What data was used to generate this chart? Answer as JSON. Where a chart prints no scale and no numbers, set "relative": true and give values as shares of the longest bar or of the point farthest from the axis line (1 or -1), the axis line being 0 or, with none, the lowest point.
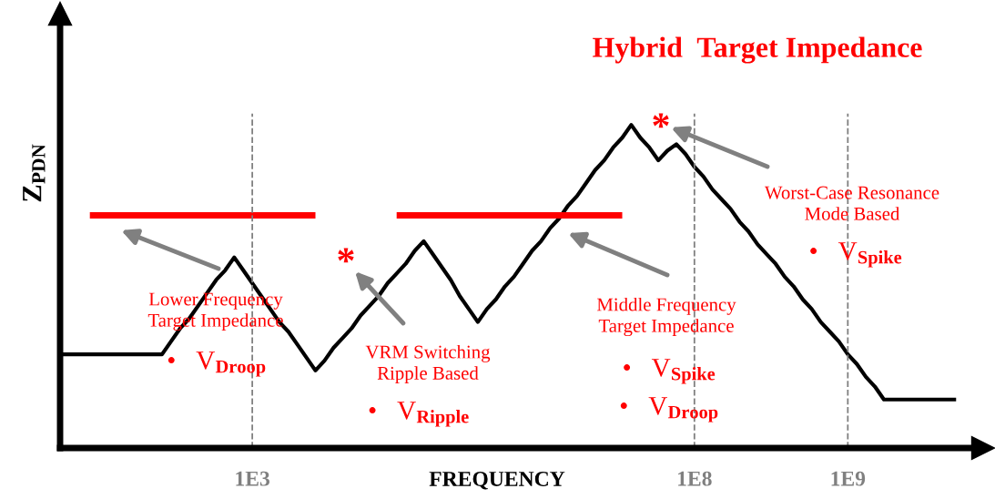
{
  "chart_data": {
    "type": "line",
    "title": "Hybrid  Target Impedance",
    "xlabel": "FREQUENCY",
    "ylabel": "Z$_{PDN}$",
    "relative": true,
    "categories": [
      null,
      null,
      null,
      null,
      null,
      null,
      null,
      null,
      null,
      null,
      null,
      null,
      null,
      null,
      null,
      null,
      null,
      null,
      null,
      null,
      null,
      "1E3",
      null,
      null,
      null,
      null,
      null,
      null,
      null,
      null,
      null,
      null,
      null,
      null,
      null,
      null,
      null,
      null,
      null,
      null,
      null,
      null,
      null,
      null,
      null,
      null,
      null,
      null,
      null,
      null,
      null,
      null,
      null,
      null,
      null,
      null,
      null,
      null,
      null,
      null,
      null,
      null,
      null,
      null,
      null,
      null,
      null,
      null,
      null,
      null,
      "1E8",
      null,
      null,
      null,
      null,
      null,
      null,
      null,
      null,
      null,
      null,
      null,
      null,
      null,
      null,
      null,
      null,
      "1E9",
      null,
      null,
      null,
      null,
      null,
      null,
      null,
      null,
      null,
      null,
      null,
      null,
      null
    ],
    "grid": false,
    "marker": "none",
    "line_style": "solid",
    "series": [
      {
        "color": "#000000",
        "values": [
          0.29,
          0.29,
          0.29,
          0.29,
          0.29,
          0.29,
          0.29,
          0.29,
          0.29,
          0.29,
          0.29,
          0.29,
          0.33,
          0.37,
          0.4,
          0.44,
          0.48,
          0.52,
          0.55,
          0.59,
          0.55,
          0.51,
          0.47,
          0.43,
          0.39,
          0.36,
          0.32,
          0.28,
          0.24,
          0.27,
          0.31,
          0.34,
          0.37,
          0.41,
          0.44,
          0.47,
          0.51,
          0.54,
          0.57,
          0.61,
          0.64,
          0.6,
          0.56,
          0.52,
          0.47,
          0.43,
          0.39,
          0.43,
          0.46,
          0.5,
          0.53,
          0.57,
          0.61,
          0.64,
          0.68,
          0.71,
          0.75,
          0.78,
          0.82,
          0.86,
          0.89,
          0.93,
          0.96,
          1.0,
          0.96,
          0.93,
          0.89,
          0.92,
          0.94,
          0.91,
          0.87,
          0.84,
          0.8,
          0.77,
          0.74,
          0.7,
          0.67,
          0.63,
          0.6,
          0.57,
          0.53,
          0.5,
          0.46,
          0.43,
          0.39,
          0.36,
          0.33,
          0.29,
          0.26,
          0.22,
          0.19,
          0.15,
          0.15,
          0.15,
          0.15,
          0.15,
          0.15,
          0.15,
          0.15,
          0.15,
          null
        ]
      },
      {
        "color": "#ff0000",
        "values": [
          null,
          null,
          null,
          0.72,
          0.72,
          0.72,
          0.72,
          0.72,
          0.72,
          0.72,
          0.72,
          0.72,
          0.72,
          0.72,
          0.72,
          0.72,
          0.72,
          0.72,
          0.72,
          0.72,
          0.72,
          0.72,
          0.72,
          0.72,
          0.72,
          0.72,
          0.72,
          0.72,
          0.72,
          null,
          null,
          null,
          null,
          null,
          null,
          null,
          null,
          null,
          null,
          null,
          null,
          null,
          null,
          null,
          null,
          null,
          null,
          null,
          null,
          null,
          null,
          null,
          null,
          null,
          null,
          null,
          null,
          null,
          null,
          null,
          null,
          null,
          null,
          null,
          null,
          null,
          null,
          null,
          null,
          null,
          null,
          null,
          null,
          null,
          null,
          null,
          null,
          null,
          null,
          null,
          null,
          null,
          null,
          null,
          null,
          null,
          null,
          null,
          null,
          null,
          null,
          null,
          null,
          null,
          null,
          null,
          null,
          null,
          null,
          null,
          null
        ]
      },
      {
        "color": "#ff0000",
        "values": [
          null,
          null,
          null,
          null,
          null,
          null,
          null,
          null,
          null,
          null,
          null,
          null,
          null,
          null,
          null,
          null,
          null,
          null,
          null,
          null,
          null,
          null,
          null,
          null,
          null,
          null,
          null,
          null,
          null,
          null,
          null,
          null,
          null,
          null,
          null,
          null,
          null,
          0.72,
          0.72,
          0.72,
          0.72,
          0.72,
          0.72,
          0.72,
          0.72,
          0.72,
          0.72,
          0.72,
          0.72,
          0.72,
          0.72,
          0.72,
          0.72,
          0.72,
          0.72,
          0.72,
          0.72,
          0.72,
          0.72,
          0.72,
          0.72,
          0.72,
          0.72,
          null,
          null,
          null,
          null,
          null,
          null,
          null,
          null,
          null,
          null,
          null,
          null,
          null,
          null,
          null,
          null,
          null,
          null,
          null,
          null,
          null,
          null,
          null,
          null,
          null,
          null,
          null,
          null,
          null,
          null,
          null,
          null,
          null,
          null,
          null,
          null,
          null,
          null
        ]
      }
    ],
    "ref_lines": [
      {
        "axis": "x",
        "value": "1E3",
        "color": "#808080",
        "line_style": "dashed"
      },
      {
        "axis": "x",
        "value": "1E8",
        "color": "#808080",
        "line_style": "dashed"
      },
      {
        "axis": "x",
        "value": "1E9",
        "color": "#808080",
        "line_style": "dashed"
      }
    ],
    "annotations": [
      "Lower Frequency\nTarget Impedance",
      "•   V$_{Droop}$",
      "*",
      "VRM Switching\nRipple Based",
      "•   V$_{Ripple}$",
      "Middle Frequency\nTarget Impedance",
      "•   V$_{Spike}$",
      "•   V$_{Droop}$",
      "*",
      "Worst-Case Resonance\nMode Based",
      "•   V$_{Spike}$"
    ]
  }
}
